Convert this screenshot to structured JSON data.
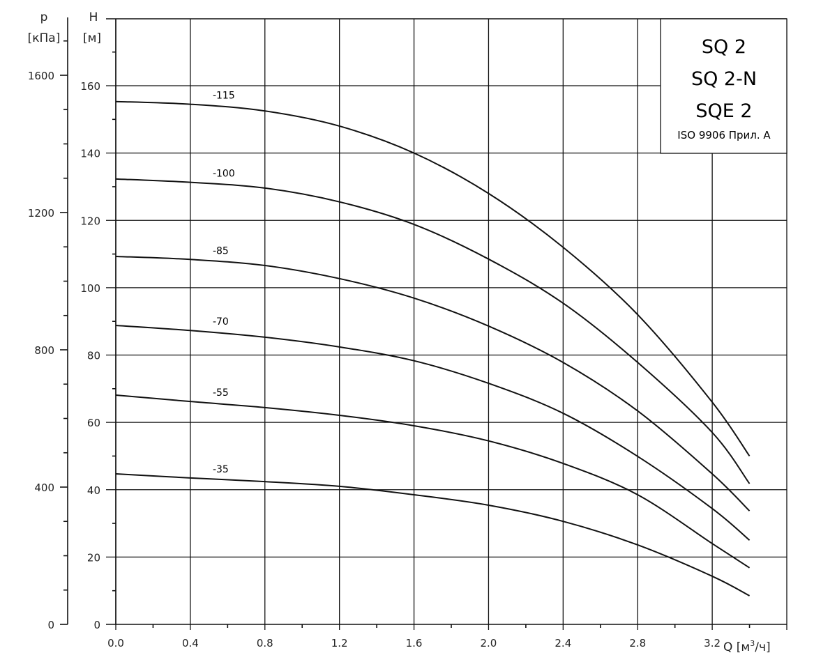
{
  "chart_data": {
    "type": "line",
    "title_lines": [
      "SQ 2",
      "SQ 2-N",
      "SQE 2"
    ],
    "note": "ISO 9906 Прил. A",
    "xlabel": "Q [м³/ч]",
    "xlabel_main": "Q [м",
    "xlabel_sup": "3",
    "xlabel_tail": "/ч]",
    "ylabel": "H",
    "ylabel_unit": "[м]",
    "y2label": "p",
    "y2label_unit": "[кПа]",
    "xlim": [
      0,
      3.6
    ],
    "ylim": [
      0,
      160
    ],
    "y2lim": [
      0,
      1600
    ],
    "grid": true,
    "legend_position": "top-right",
    "x_ticks": [
      "0.0",
      "0.4",
      "0.8",
      "1.2",
      "1.6",
      "2.0",
      "2.4",
      "2.8",
      "3.2"
    ],
    "y_ticks": [
      "0",
      "20",
      "40",
      "60",
      "80",
      "100",
      "120",
      "140",
      "160"
    ],
    "y2_ticks": [
      "0",
      "400",
      "800",
      "1200",
      "1600"
    ],
    "x": [
      0,
      0.4,
      0.8,
      1.2,
      1.6,
      2.0,
      2.4,
      2.8,
      3.2,
      3.4
    ],
    "series": [
      {
        "name": "-115",
        "values": [
          155.3,
          154.5,
          152.5,
          148,
          140,
          128,
          112,
          92,
          66,
          50
        ]
      },
      {
        "name": "-100",
        "values": [
          132.3,
          131.3,
          129.6,
          125.5,
          118.8,
          108.5,
          95.4,
          77.8,
          57,
          41.8
        ]
      },
      {
        "name": "-85",
        "values": [
          109.3,
          108.4,
          106.6,
          102.7,
          96.9,
          88.6,
          77.8,
          63.4,
          44.7,
          33.7
        ]
      },
      {
        "name": "-70",
        "values": [
          88.8,
          87.3,
          85.3,
          82.4,
          78.3,
          71.6,
          62.7,
          49.9,
          34.4,
          25
        ]
      },
      {
        "name": "-55",
        "values": [
          68.1,
          66.2,
          64.4,
          62.1,
          59,
          54.5,
          47.8,
          38.5,
          24,
          16.8
        ]
      },
      {
        "name": "-35",
        "values": [
          44.7,
          43.5,
          42.4,
          41,
          38.5,
          35.4,
          30.6,
          23.6,
          14.3,
          8.5
        ]
      }
    ]
  }
}
